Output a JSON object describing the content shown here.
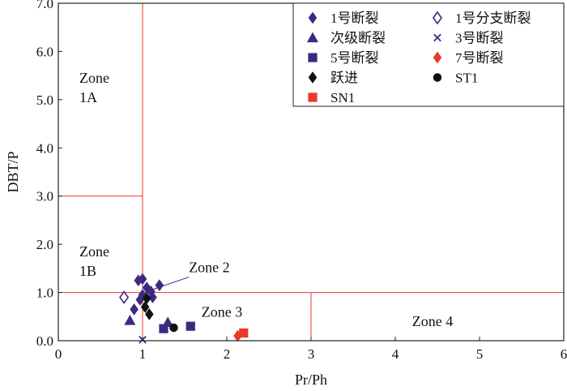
{
  "chart_data": {
    "type": "scatter",
    "xlabel": "Pr/Ph",
    "ylabel": "DBT/P",
    "xlim": [
      0,
      6
    ],
    "ylim": [
      0,
      7
    ],
    "x_ticks": [
      "0",
      "1",
      "2",
      "3",
      "4",
      "5",
      "6"
    ],
    "y_ticks": [
      "0.0",
      "1.0",
      "2.0",
      "3.0",
      "4.0",
      "5.0",
      "6.0",
      "7.0"
    ],
    "grid": false,
    "legend_position": "top-right",
    "colors": {
      "red": "#e8392a",
      "purple": "#3c2a80",
      "black": "#111111"
    },
    "zone_boundaries": {
      "v_x1": 1.0,
      "v_x2": 3.0,
      "h_y_full": 1.0,
      "h_y_short": 3.0
    },
    "zones": [
      {
        "lines": [
          "Zone",
          "1A"
        ],
        "x": 0.25,
        "y": 5.35
      },
      {
        "lines": [
          "Zone",
          "1B"
        ],
        "x": 0.25,
        "y": 1.75
      },
      {
        "lines": [
          "Zone 2"
        ],
        "x": 1.55,
        "y": 1.42
      },
      {
        "lines": [
          "Zone 3"
        ],
        "x": 1.7,
        "y": 0.5
      },
      {
        "lines": [
          "Zone 4"
        ],
        "x": 4.2,
        "y": 0.3
      }
    ],
    "zone2_pointer": {
      "from": [
        1.55,
        1.32
      ],
      "to": [
        1.1,
        1.05
      ]
    },
    "series": [
      {
        "name": "1号断裂",
        "marker": "diamond",
        "color": "#3c2a80",
        "points": [
          [
            0.95,
            1.25
          ],
          [
            1.0,
            1.28
          ],
          [
            1.05,
            1.1
          ],
          [
            1.2,
            1.15
          ],
          [
            1.1,
            1.02
          ],
          [
            1.12,
            0.9
          ],
          [
            1.0,
            0.95
          ],
          [
            0.97,
            0.85
          ],
          [
            0.9,
            0.65
          ]
        ]
      },
      {
        "name": "1号分支断裂",
        "marker": "diamond-open",
        "color": "#3c2a80",
        "points": [
          [
            0.78,
            0.9
          ]
        ]
      },
      {
        "name": "次级断裂",
        "marker": "triangle",
        "color": "#3c2a80",
        "points": [
          [
            0.85,
            0.42
          ],
          [
            1.3,
            0.38
          ]
        ]
      },
      {
        "name": "3号断裂",
        "marker": "x",
        "color": "#3c2a80",
        "points": [
          [
            1.0,
            0.02
          ]
        ]
      },
      {
        "name": "5号断裂",
        "marker": "square",
        "color": "#3c2a80",
        "points": [
          [
            1.25,
            0.25
          ],
          [
            1.57,
            0.3
          ]
        ]
      },
      {
        "name": "7号断裂",
        "marker": "diamond",
        "color": "#e8392a",
        "points": [
          [
            2.13,
            0.1
          ]
        ]
      },
      {
        "name": "跃进",
        "marker": "diamond",
        "color": "#111111",
        "points": [
          [
            1.05,
            0.88
          ],
          [
            1.03,
            0.7
          ],
          [
            1.08,
            0.55
          ]
        ]
      },
      {
        "name": "ST1",
        "marker": "circle",
        "color": "#111111",
        "points": [
          [
            1.37,
            0.27
          ]
        ]
      },
      {
        "name": "SN1",
        "marker": "square",
        "color": "#e8392a",
        "points": [
          [
            2.2,
            0.16
          ]
        ]
      }
    ]
  }
}
